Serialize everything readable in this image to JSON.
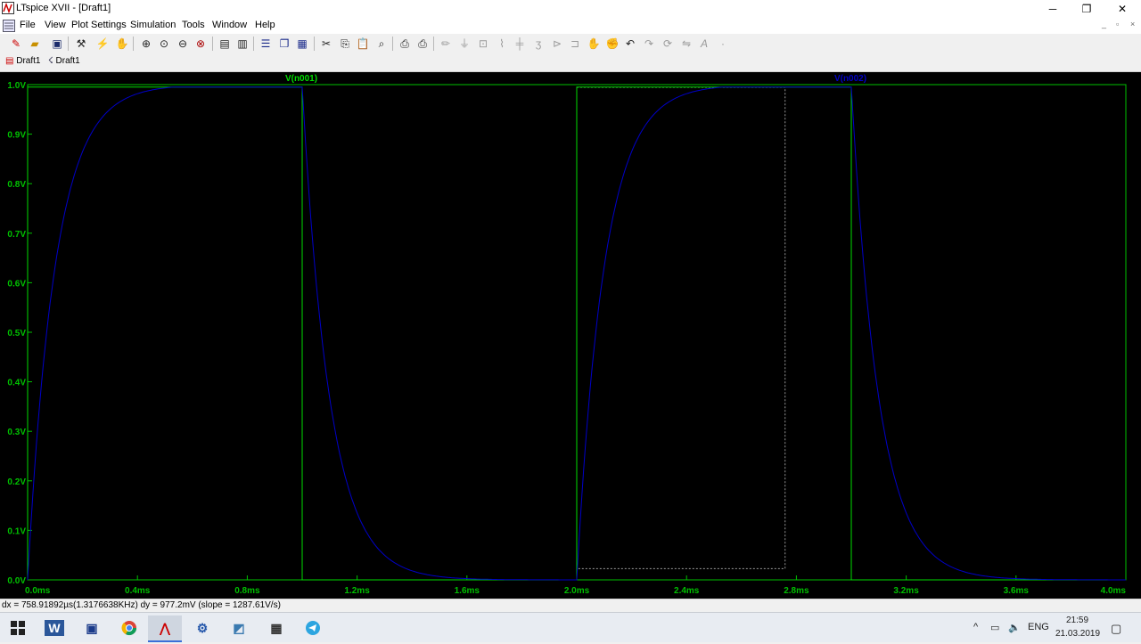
{
  "window": {
    "title": "LTspice XVII - [Draft1]",
    "minimize_glyph": "─",
    "restore_glyph": "❐",
    "close_glyph": "✕"
  },
  "menu": {
    "items": [
      "File",
      "View",
      "Plot Settings",
      "Simulation",
      "Tools",
      "Window",
      "Help"
    ],
    "mdi_minimize": "_",
    "mdi_restore": "▫",
    "mdi_close": "×"
  },
  "toolbar": {
    "icons": [
      "new-schematic",
      "open",
      "save",
      "control-panel",
      "run",
      "halt",
      "zoom-area",
      "zoom-in",
      "zoom-out",
      "zoom-full",
      "autorange-y",
      "autorange-x",
      "tile-horizontal",
      "cascade",
      "tile-vertical",
      "cut",
      "copy",
      "paste",
      "find",
      "print-setup",
      "print",
      "draw-wire",
      "ground",
      "label-net",
      "resistor",
      "capacitor",
      "inductor",
      "diode",
      "component",
      "move",
      "drag",
      "undo",
      "redo",
      "rotate",
      "mirror",
      "text",
      "spice-directive"
    ]
  },
  "tabs": [
    {
      "label": "Draft1",
      "icon": "waveform-icon"
    },
    {
      "label": "Draft1",
      "icon": "schematic-icon"
    }
  ],
  "chart_data": {
    "type": "line",
    "xlabel": "",
    "ylabel": "",
    "x_unit": "ms",
    "xlim": [
      0,
      4.0
    ],
    "ylim": [
      0,
      1.0
    ],
    "x_ticks": [
      "0.0ms",
      "0.4ms",
      "0.8ms",
      "1.2ms",
      "1.6ms",
      "2.0ms",
      "2.4ms",
      "2.8ms",
      "3.2ms",
      "3.6ms",
      "4.0ms"
    ],
    "y_ticks": [
      "0.0V",
      "0.1V",
      "0.2V",
      "0.3V",
      "0.4V",
      "0.5V",
      "0.6V",
      "0.7V",
      "0.8V",
      "0.9V",
      "1.0V"
    ],
    "tau_ms": 0.1,
    "series": [
      {
        "name": "V(n001)",
        "color": "#00dd00",
        "kind": "pulse",
        "high_intervals": [
          [
            0,
            1.0
          ],
          [
            2.0,
            3.0
          ]
        ]
      },
      {
        "name": "V(n002)",
        "color": "#0000c8",
        "kind": "rc-response",
        "edges": [
          [
            0,
            1
          ],
          [
            1.0,
            0
          ],
          [
            2.0,
            1
          ],
          [
            3.0,
            0
          ]
        ]
      }
    ],
    "cursor_box": {
      "x1": 2.0,
      "x2": 2.7589,
      "y1": 0.0228,
      "y2": 1.0
    }
  },
  "status": {
    "text": "dx = 758.91892µs(1.3176638KHz)   dy = 977.2mV   (slope = 1287.61V/s)"
  },
  "taskbar": {
    "apps": [
      "windows-start",
      "word",
      "save-floppy",
      "chrome",
      "ltspice",
      "search-tool",
      "file-tool",
      "calculator",
      "telegram"
    ],
    "tray_chevron": "^",
    "lang": "ENG",
    "time": "21:59",
    "date": "21.03.2019"
  }
}
